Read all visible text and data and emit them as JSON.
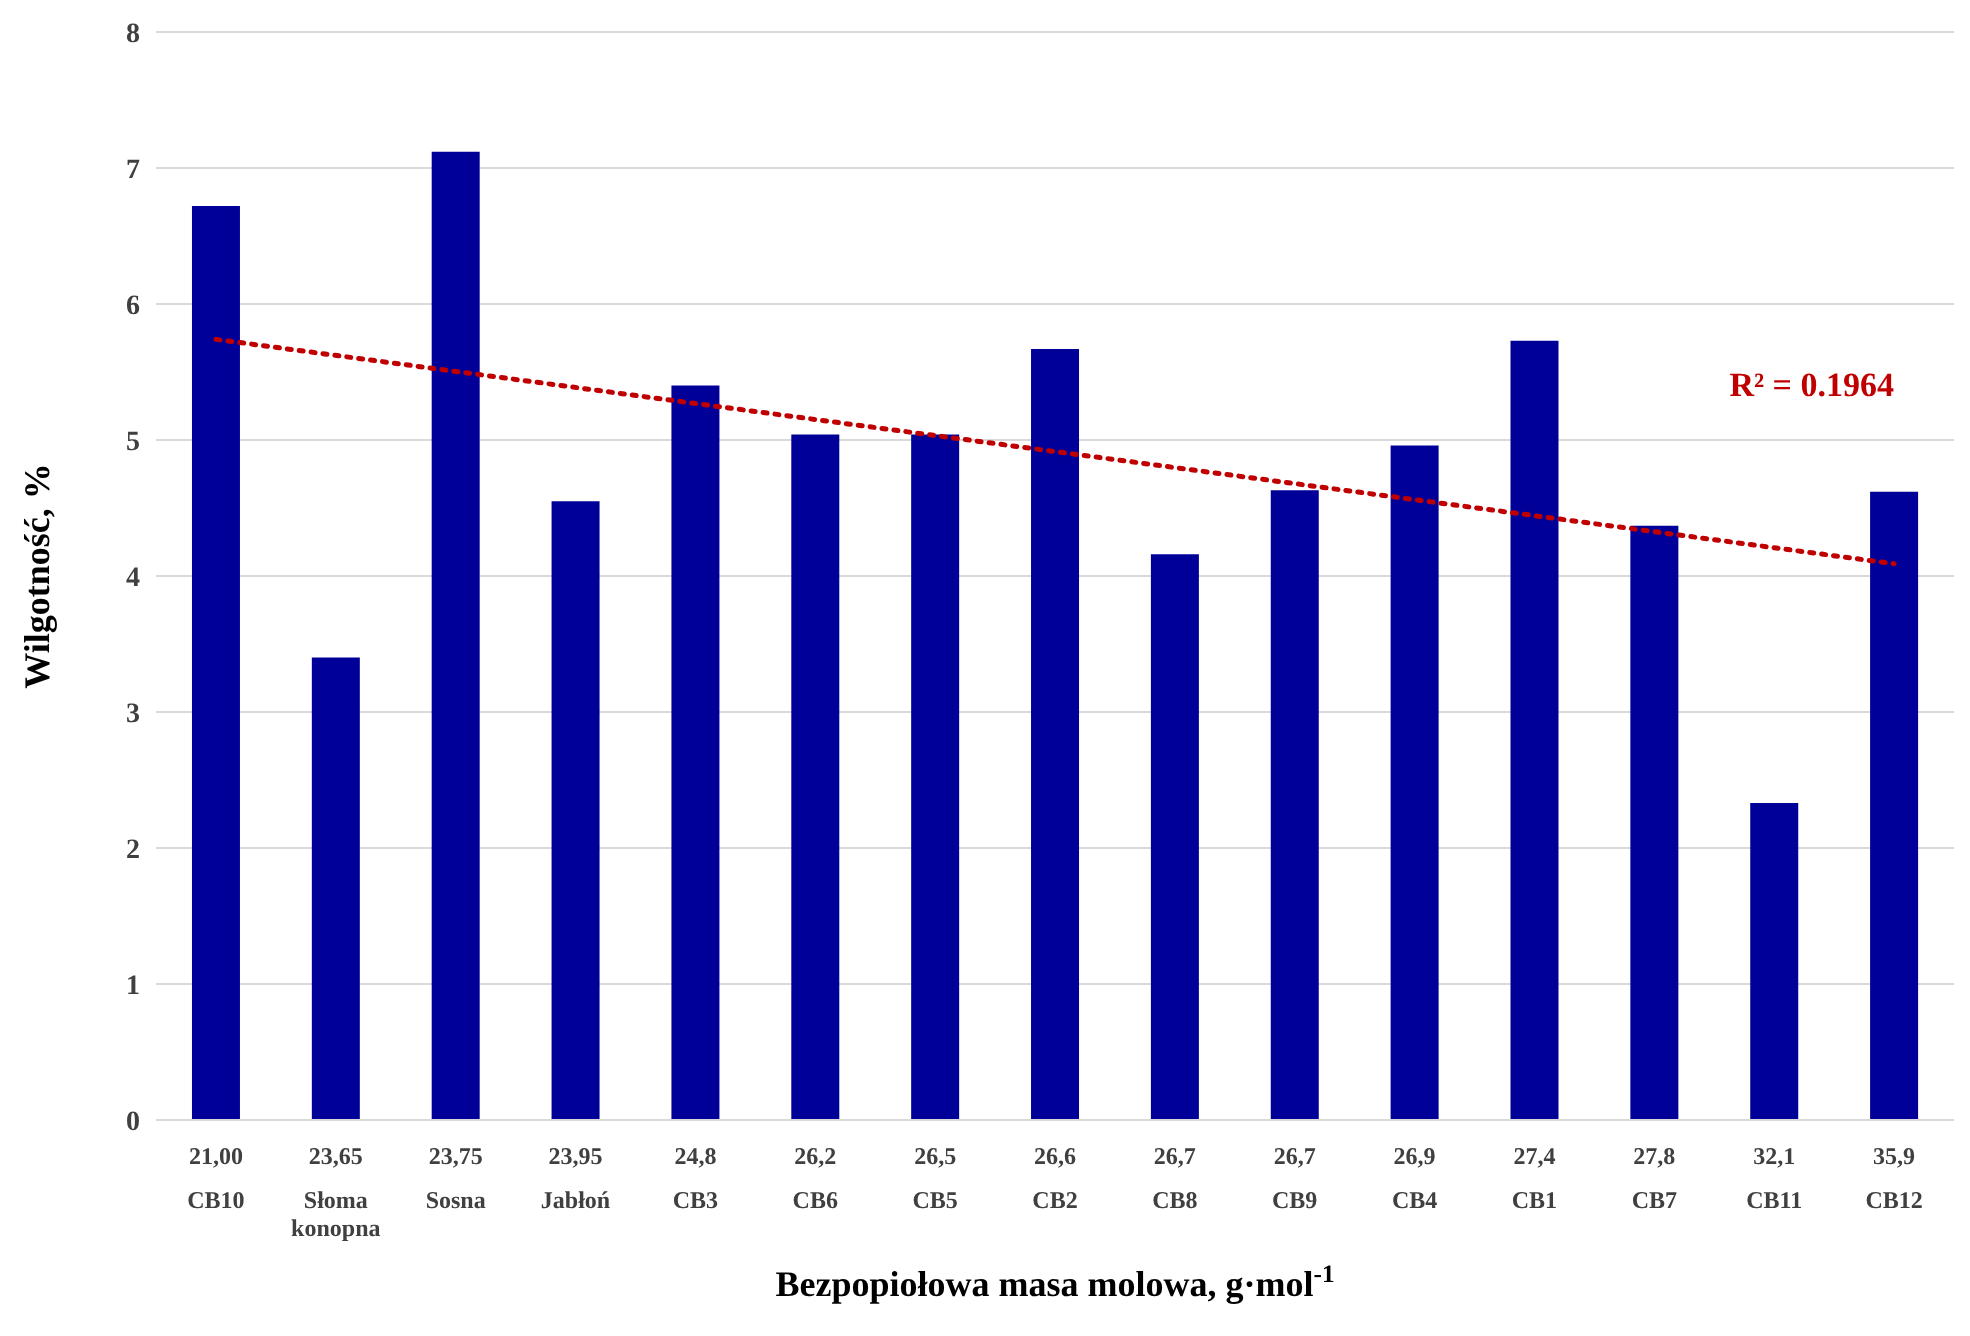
{
  "chart_data": {
    "type": "bar",
    "xlabel": "Bezpopiołowa masa molowa, g·mol$^{-1}$",
    "ylabel": "Wilgotność, %",
    "categories": [
      "21,00\nCB10",
      "23,65\nSłoma konopna",
      "23,75\nSosna",
      "23,95\nJabłoń",
      "24,8\nCB3",
      "26,2\nCB6",
      "26,5\nCB5",
      "26,6\nCB2",
      "26,7\nCB8",
      "26,7\nCB9",
      "26,9\nCB4",
      "27,4\nCB1",
      "27,8\nCB7",
      "32,1\nCB11",
      "35,9\nCB12"
    ],
    "series": [
      {
        "color": "#000099",
        "values": [
          6.72,
          3.4,
          7.12,
          4.55,
          5.4,
          5.04,
          5.04,
          5.67,
          4.16,
          4.63,
          4.96,
          5.73,
          4.37,
          2.33,
          4.62
        ]
      },
      {
        "type": "line",
        "color": "#c00000",
        "line_style": "dotted",
        "marker": "none",
        "x": [
          "21,00\nCB10",
          "35,9\nCB12"
        ],
        "values": [
          5.74,
          4.09
        ]
      }
    ],
    "ylim": [
      0,
      8
    ],
    "yticks": [
      0,
      1,
      2,
      3,
      4,
      5,
      6,
      7,
      8
    ],
    "grid": "y",
    "legend": false,
    "annotations": [
      "R² = 0.1964"
    ]
  }
}
